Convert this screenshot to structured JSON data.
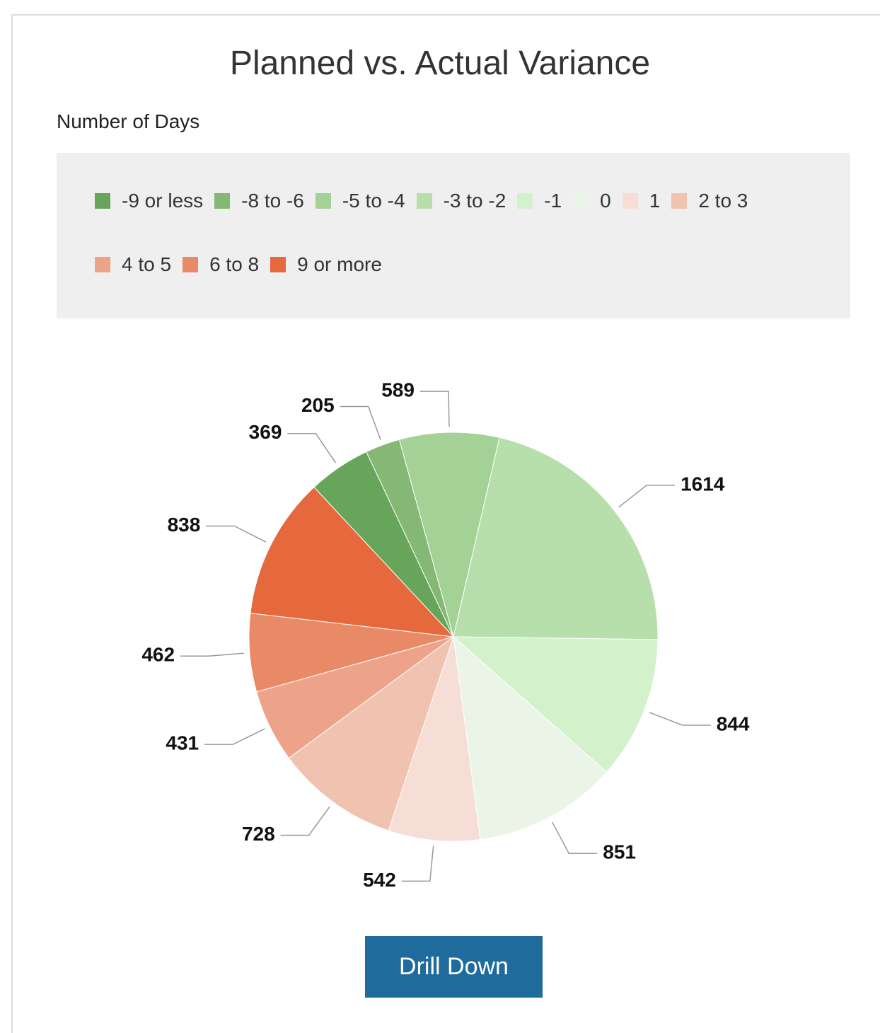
{
  "chart_data": {
    "type": "pie",
    "title": "Planned vs. Actual Variance",
    "subtitle": "Number of Days",
    "categories": [
      "-9 or less",
      "-8 to -6",
      "-5 to -4",
      "-3 to -2",
      "-1",
      "0",
      "1",
      "2 to 3",
      "4 to 5",
      "6 to 8",
      "9 or more"
    ],
    "values": [
      369,
      205,
      589,
      1614,
      844,
      851,
      542,
      728,
      431,
      462,
      838
    ],
    "colors": [
      "#67a55a",
      "#84b874",
      "#a3d196",
      "#b7dfab",
      "#d3f2cc",
      "#eaf5e8",
      "#f6ddd6",
      "#f0c2b0",
      "#eda389",
      "#e88a66",
      "#e5693c"
    ],
    "legend": "top"
  },
  "button": "Drill Down"
}
